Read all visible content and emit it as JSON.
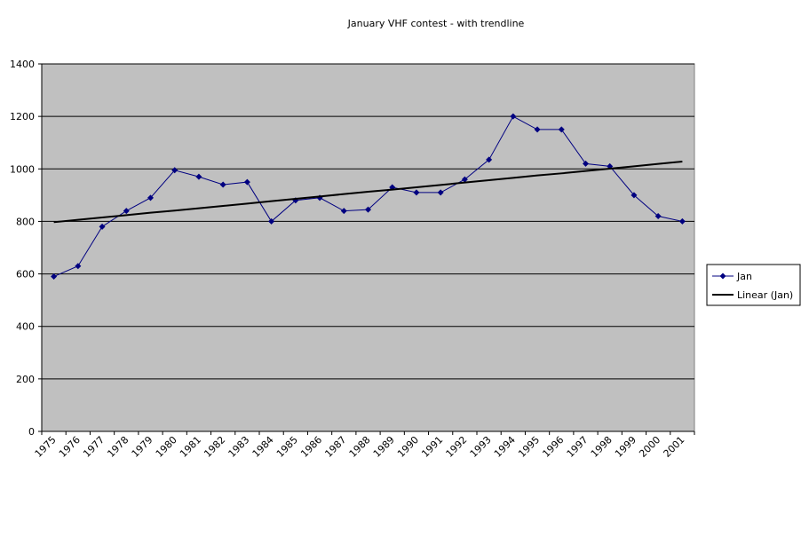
{
  "chart_data": {
    "type": "line",
    "title": "January VHF contest - with trendline",
    "categories": [
      "1975",
      "1976",
      "1977",
      "1978",
      "1979",
      "1980",
      "1981",
      "1982",
      "1983",
      "1984",
      "1985",
      "1986",
      "1987",
      "1988",
      "1989",
      "1990",
      "1991",
      "1992",
      "1993",
      "1994",
      "1995",
      "1996",
      "1997",
      "1998",
      "1999",
      "2000",
      "2001"
    ],
    "series": [
      {
        "name": "Jan",
        "color": "#000080",
        "values": [
          590,
          630,
          780,
          840,
          890,
          995,
          970,
          940,
          950,
          800,
          880,
          890,
          840,
          845,
          930,
          910,
          910,
          960,
          1035,
          1200,
          1150,
          1150,
          1020,
          1010,
          900,
          820,
          800
        ]
      },
      {
        "name": "Linear (Jan)",
        "color": "#000000",
        "values": [
          797,
          806,
          815,
          824,
          833,
          841,
          850,
          859,
          868,
          877,
          886,
          895,
          904,
          913,
          921,
          930,
          939,
          948,
          957,
          966,
          975,
          983,
          992,
          1001,
          1010,
          1019,
          1028
        ]
      }
    ],
    "ylim": [
      0,
      1400
    ],
    "yticks": [
      0,
      200,
      400,
      600,
      800,
      1000,
      1200,
      1400
    ],
    "grid": true,
    "legend": "right"
  }
}
